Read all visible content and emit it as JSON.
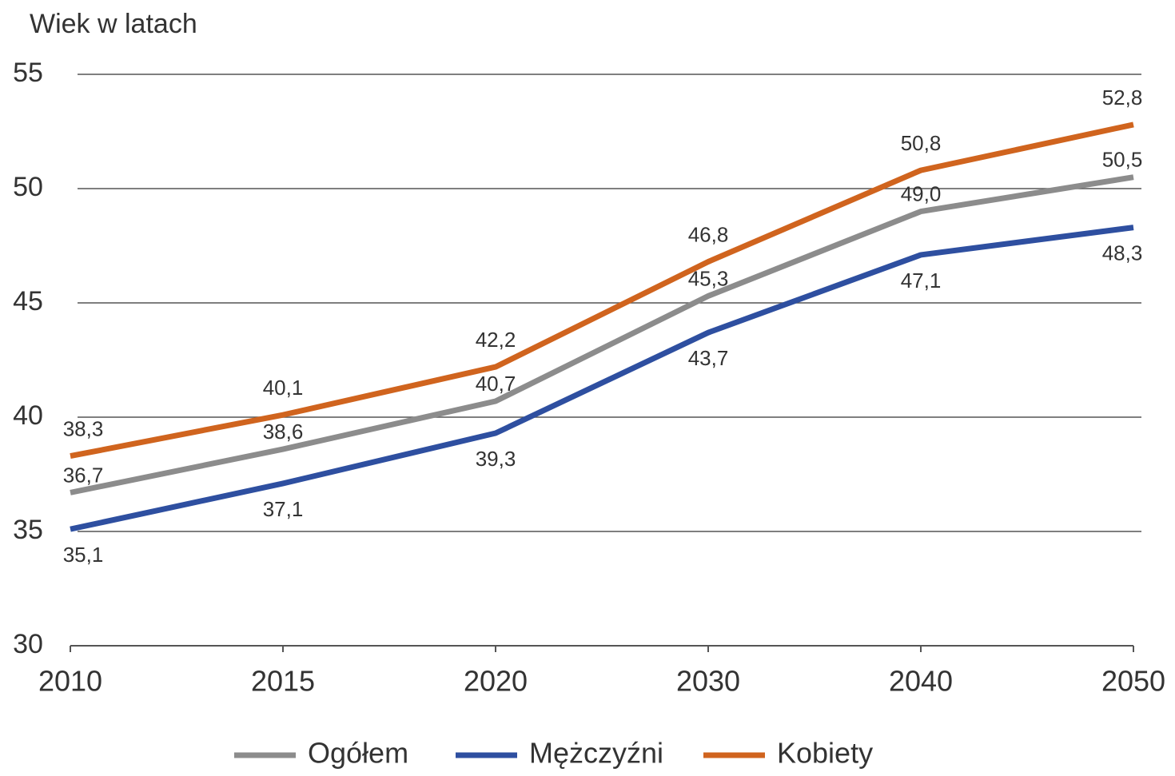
{
  "chart_data": {
    "type": "line",
    "y_label": "Wiek w latach",
    "categories": [
      "2010",
      "2015",
      "2020",
      "2030",
      "2040",
      "2050"
    ],
    "series": [
      {
        "name": "Ogółem",
        "color": "#8c8c8c",
        "values": [
          36.7,
          38.6,
          40.7,
          45.3,
          49.0,
          50.5
        ],
        "value_labels": [
          "36,7",
          "38,6",
          "40,7",
          "45,3",
          "49,0",
          "50,5"
        ],
        "label_position": "above"
      },
      {
        "name": "Mężczyźni",
        "color": "#2e4fa0",
        "values": [
          35.1,
          37.1,
          39.3,
          43.7,
          47.1,
          48.3
        ],
        "value_labels": [
          "35,1",
          "37,1",
          "39,3",
          "43,7",
          "47,1",
          "48,3"
        ],
        "label_position": "below"
      },
      {
        "name": "Kobiety",
        "color": "#d0641e",
        "values": [
          38.3,
          40.1,
          42.2,
          46.8,
          50.8,
          52.8
        ],
        "value_labels": [
          "38,3",
          "40,1",
          "42,2",
          "46,8",
          "50,8",
          "52,8"
        ],
        "label_position": "above"
      }
    ],
    "ylim": [
      30,
      55
    ],
    "yticks": [
      30,
      35,
      40,
      45,
      50,
      55
    ],
    "grid": true,
    "legend": "bottom"
  }
}
